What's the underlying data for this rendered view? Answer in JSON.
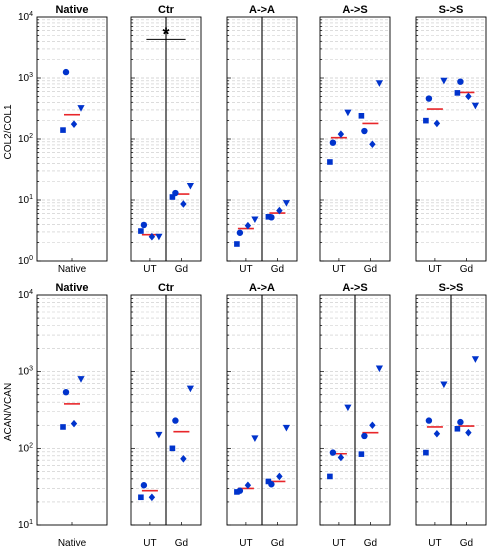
{
  "colors": {
    "marker": "#0033cc",
    "median": "#e8262a",
    "grid": "#c8c8c8",
    "axis": "#000000"
  },
  "marker_shapes": [
    "circle",
    "diamond",
    "square",
    "triangle-down"
  ],
  "chart_data": [
    {
      "type": "scatter",
      "row": 0,
      "ylabel": "COL2/COL1",
      "yscale": "log",
      "ylim": [
        1,
        10000
      ],
      "y_tick_labels": [
        "10^0",
        "10^1",
        "10^2",
        "10^3",
        "10^4"
      ],
      "grid": "minor-dashed",
      "panels": [
        {
          "title": "Native",
          "groups": [
            {
              "label": "Native",
              "values": [
                1250,
                175,
                140,
                320
              ],
              "median": 250
            }
          ]
        },
        {
          "title": "Ctr",
          "divider": true,
          "annotation": "*",
          "bracket": [
            5000,
            4300
          ],
          "groups": [
            {
              "label": "UT",
              "values": [
                3.9,
                2.5,
                3.1,
                2.5
              ],
              "median": 2.7
            },
            {
              "label": "Gd",
              "values": [
                13.0,
                8.6,
                11.2,
                17.0
              ],
              "median": 12.5
            }
          ]
        },
        {
          "title": "A->A",
          "divider": true,
          "groups": [
            {
              "label": "UT",
              "values": [
                2.9,
                3.8,
                1.9,
                4.8
              ],
              "median": 3.4
            },
            {
              "label": "Gd",
              "values": [
                5.2,
                6.7,
                5.3,
                8.9
              ],
              "median": 6.1
            }
          ]
        },
        {
          "title": "A->S",
          "divider": false,
          "groups": [
            {
              "label": "UT",
              "values": [
                87,
                120,
                42,
                270
              ],
              "median": 105
            },
            {
              "label": "Gd",
              "values": [
                135,
                82,
                240,
                820
              ],
              "median": 180
            }
          ]
        },
        {
          "title": "S->S",
          "divider": false,
          "groups": [
            {
              "label": "UT",
              "values": [
                460,
                180,
                200,
                900
              ],
              "median": 310
            },
            {
              "label": "Gd",
              "values": [
                870,
                500,
                570,
                350
              ],
              "median": 580
            }
          ]
        }
      ]
    },
    {
      "type": "scatter",
      "row": 1,
      "ylabel": "ACAN/VCAN",
      "yscale": "log",
      "ylim": [
        10,
        10000
      ],
      "y_tick_labels": [
        "10^1",
        "10^2",
        "10^3",
        "10^4"
      ],
      "grid": "minor-dashed",
      "panels": [
        {
          "title": "Native",
          "groups": [
            {
              "label": "Native",
              "values": [
                540,
                210,
                190,
                800
              ],
              "median": 380
            }
          ]
        },
        {
          "title": "Ctr",
          "divider": true,
          "groups": [
            {
              "label": "UT",
              "values": [
                33,
                23,
                23,
                150
              ],
              "median": 28
            },
            {
              "label": "Gd",
              "values": [
                230,
                73,
                100,
                600
              ],
              "median": 165
            }
          ]
        },
        {
          "title": "A->A",
          "divider": true,
          "groups": [
            {
              "label": "UT",
              "values": [
                28,
                33,
                27,
                135
              ],
              "median": 30
            },
            {
              "label": "Gd",
              "values": [
                34,
                43,
                37,
                185
              ],
              "median": 37
            }
          ]
        },
        {
          "title": "A->S",
          "divider": true,
          "groups": [
            {
              "label": "UT",
              "values": [
                88,
                76,
                43,
                340
              ],
              "median": 85
            },
            {
              "label": "Gd",
              "values": [
                145,
                200,
                84,
                1100
              ],
              "median": 160
            }
          ]
        },
        {
          "title": "S->S",
          "divider": true,
          "groups": [
            {
              "label": "UT",
              "values": [
                230,
                155,
                88,
                680
              ],
              "median": 190
            },
            {
              "label": "Gd",
              "values": [
                220,
                160,
                180,
                1450
              ],
              "median": 195
            }
          ]
        }
      ]
    }
  ]
}
